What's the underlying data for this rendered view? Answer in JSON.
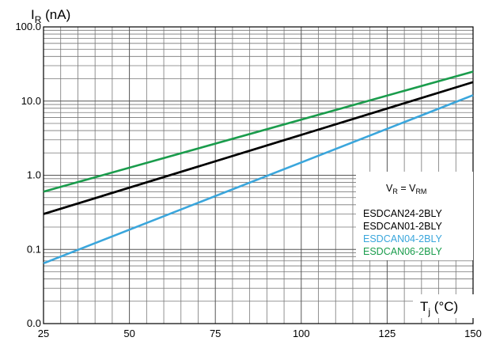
{
  "chart_data": {
    "type": "line",
    "y_scale": "log",
    "xlim": [
      25,
      150
    ],
    "ylim": [
      0.01,
      100
    ],
    "x_ticks": [
      25,
      50,
      75,
      100,
      125,
      150
    ],
    "x_tick_labels": [
      "25",
      "50",
      "75",
      "100",
      "125",
      "150"
    ],
    "y_tick_values": [
      0.01,
      0.1,
      1,
      10,
      100
    ],
    "y_tick_labels": [
      "0.0",
      "0.1",
      "1.0",
      "10.0",
      "100.0"
    ],
    "ylabel": {
      "main": "I",
      "sub": "R",
      "unit": " (nA)"
    },
    "xlabel": {
      "main": "T",
      "sub": "j",
      "unit": " (°C)"
    },
    "grid": true,
    "legend_position": "right-middle",
    "legend_condition": {
      "main1": "V",
      "sub1": "R",
      "eq": " = V",
      "sub2": "RM"
    },
    "series": [
      {
        "name": "ESDCAN24-2BLY",
        "color": "#000000",
        "x": [
          25,
          150
        ],
        "y": [
          0.3,
          18
        ]
      },
      {
        "name": "ESDCAN01-2BLY",
        "color": "#000000",
        "x": [
          25,
          150
        ],
        "y": [
          0.3,
          18
        ]
      },
      {
        "name": "ESDCAN04-2BLY",
        "color": "#3aa6dc",
        "x": [
          25,
          150
        ],
        "y": [
          0.065,
          12
        ]
      },
      {
        "name": "ESDCAN06-2BLY",
        "color": "#1a9c4c",
        "x": [
          25,
          150
        ],
        "y": [
          0.6,
          25
        ]
      }
    ]
  }
}
